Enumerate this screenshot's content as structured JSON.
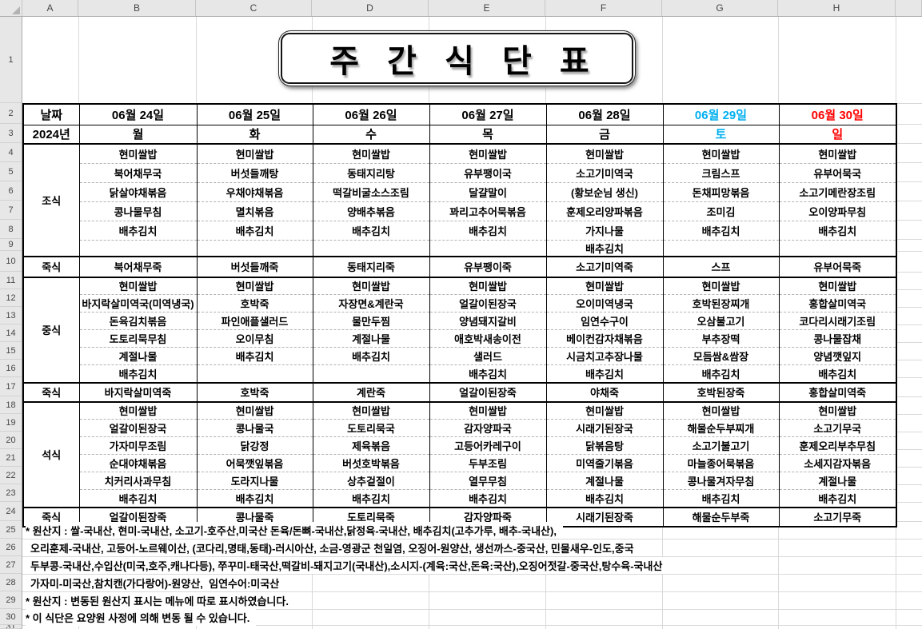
{
  "title": "주 간 식 단 표",
  "columns": [
    "A",
    "B",
    "C",
    "D",
    "E",
    "F",
    "G",
    "H"
  ],
  "rows": {
    "first": 1,
    "last": 31
  },
  "header": {
    "date_label": "날짜",
    "year_label": "2024년",
    "days": [
      {
        "date": "06월 24일",
        "weekday": "월",
        "color": "#000000"
      },
      {
        "date": "06월 25일",
        "weekday": "화",
        "color": "#000000"
      },
      {
        "date": "06월 26일",
        "weekday": "수",
        "color": "#000000"
      },
      {
        "date": "06월 27일",
        "weekday": "목",
        "color": "#000000"
      },
      {
        "date": "06월 28일",
        "weekday": "금",
        "color": "#000000"
      },
      {
        "date": "06월 29일",
        "weekday": "토",
        "color": "#00B0F0"
      },
      {
        "date": "06월 30일",
        "weekday": "일",
        "color": "#FF0000"
      }
    ]
  },
  "meal_sections": [
    {
      "type": "meal",
      "label": "조식",
      "days": [
        [
          "현미쌀밥",
          "북어채무국",
          "닭살야채볶음",
          "콩나물무침",
          "배추김치",
          ""
        ],
        [
          "현미쌀밥",
          "버섯들깨탕",
          "우채야채볶음",
          "멸치볶음",
          "배추김치",
          ""
        ],
        [
          "현미쌀밥",
          "동태지리탕",
          "떡갈비굴소스조림",
          "양배추볶음",
          "배추김치",
          ""
        ],
        [
          "현미쌀밥",
          "유부팽이국",
          "달걀말이",
          "꽈리고추어묵볶음",
          "배추김치",
          ""
        ],
        [
          "현미쌀밥",
          "소고기미역국",
          "(황보순님 생신)",
          "훈제오리양파볶음",
          "가지나물",
          "배추김치"
        ],
        [
          "현미쌀밥",
          "크림스프",
          "돈채피망볶음",
          "조미김",
          "배추김치",
          ""
        ],
        [
          "현미쌀밥",
          "유부어묵국",
          "소고기메란장조림",
          "오이양파무침",
          "배추김치",
          ""
        ]
      ]
    },
    {
      "type": "porridge",
      "label": "죽식",
      "days": [
        "북어채무죽",
        "버섯들깨죽",
        "동태지리죽",
        "유부팽이죽",
        "소고기미역죽",
        "스프",
        "유부어묵죽"
      ]
    },
    {
      "type": "meal",
      "label": "중식",
      "days": [
        [
          "현미쌀밥",
          "바지락살미역국(미역냉국)",
          "돈육김치볶음",
          "도토리묵무침",
          "계절나물",
          "배추김치"
        ],
        [
          "현미쌀밥",
          "호박죽",
          "파인애플샐러드",
          "오이무침",
          "배추김치",
          ""
        ],
        [
          "현미쌀밥",
          "자장면&계란국",
          "물만두찜",
          "계절나물",
          "배추김치",
          ""
        ],
        [
          "현미쌀밥",
          "얼갈이된장국",
          "양념돼지갈비",
          "애호박새송이전",
          "샐러드",
          "배추김치"
        ],
        [
          "현미쌀밥",
          "오이미역냉국",
          "임연수구이",
          "베이컨감자채볶음",
          "시금치고추장나물",
          "배추김치"
        ],
        [
          "현미쌀밥",
          "호박된장찌개",
          "오삼불고기",
          "부추장떡",
          "모듬쌈&쌈장",
          "배추김치"
        ],
        [
          "현미쌀밥",
          "홍합살미역국",
          "코다리시래기조림",
          "콩나물잡채",
          "양념깻잎지",
          "배추김치"
        ]
      ]
    },
    {
      "type": "porridge",
      "label": "죽식",
      "days": [
        "바지락살미역죽",
        "호박죽",
        "계란죽",
        "얼갈이된장죽",
        "야채죽",
        "호박된장죽",
        "홍합살미역죽"
      ]
    },
    {
      "type": "meal",
      "label": "석식",
      "days": [
        [
          "현미쌀밥",
          "얼갈이된장국",
          "가자미무조림",
          "순대야채볶음",
          "치커리사과무침",
          "배추김치"
        ],
        [
          "현미쌀밥",
          "콩나물국",
          "닭강정",
          "어묵깻잎볶음",
          "도라지나물",
          "배추김치"
        ],
        [
          "현미쌀밥",
          "도토리묵국",
          "제육볶음",
          "버섯호박볶음",
          "상추겉절이",
          "배추김치"
        ],
        [
          "현미쌀밥",
          "감자양파국",
          "고등어카레구이",
          "두부조림",
          "열무무침",
          "배추김치"
        ],
        [
          "현미쌀밥",
          "시래기된장국",
          "닭볶음탕",
          "미역줄기볶음",
          "계절나물",
          "배추김치"
        ],
        [
          "현미쌀밥",
          "해물순두부찌개",
          "소고기불고기",
          "마늘종어묵볶음",
          "콩나물겨자무침",
          "배추김치"
        ],
        [
          "현미쌀밥",
          "소고기무국",
          "훈제오리부추무침",
          "소세지감자볶음",
          "계절나물",
          "배추김치"
        ]
      ]
    },
    {
      "type": "porridge",
      "label": "죽식",
      "days": [
        "얼갈이된장죽",
        "콩나물죽",
        "도토리묵죽",
        "감자양파죽",
        "시래기된장죽",
        "해물순두부죽",
        "소고기무죽"
      ]
    }
  ],
  "footnotes": [
    "* 원산지 : 쌀-국내산, 현미-국내산, 소고기-호주산,미국산 돈육/돈뼈-국내산,닭정육-국내산, 배추김치(고추가루, 배추-국내산),",
    "오리훈제-국내산, 고등어-노르웨이산, (코다리,명태,동태)-러시아산, 소금-영광군 천일염, 오징어-원양산, 생선까스-중국산, 민물새우-인도,중국",
    "두부콩-국내산,수입산(미국,호주,캐나다등), 쭈꾸미-태국산,떡갈비-돼지고기(국내산),소시지-(계육:국산,돈육:국산),오징어젓갈-중국산,탕수육-국내산",
    "가자미-미국산,참치캔(가다랑어)-원양산,  임연수어:미국산",
    "* 원산지 : 변동된 원산지 표시는 메뉴에 따로 표시하였습니다.",
    "* 이 식단은 요양원 사정에 의해 변동 될 수 있습니다."
  ]
}
